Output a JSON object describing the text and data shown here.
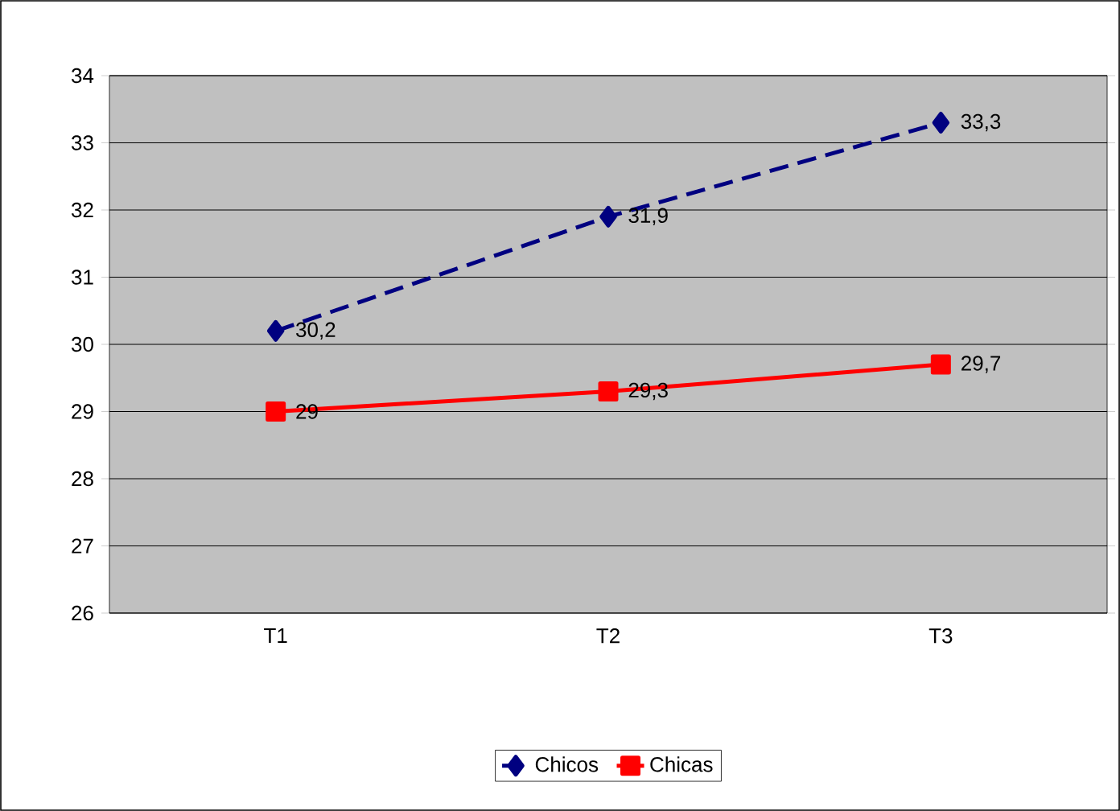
{
  "chart_data": {
    "type": "line",
    "categories": [
      "T1",
      "T2",
      "T3"
    ],
    "series": [
      {
        "name": "Chicos",
        "color": "#000080",
        "values": [
          30.2,
          31.9,
          33.3
        ],
        "value_labels": [
          "30,2",
          "31,9",
          "33,3"
        ],
        "marker": "diamond",
        "line_style": "dashed"
      },
      {
        "name": "Chicas",
        "color": "#ff0000",
        "values": [
          29,
          29.3,
          29.7
        ],
        "value_labels": [
          "29",
          "29,3",
          "29,7"
        ],
        "marker": "square",
        "line_style": "solid"
      }
    ],
    "ylim": [
      26,
      34
    ],
    "yticks": [
      26,
      27,
      28,
      29,
      30,
      31,
      32,
      33,
      34
    ],
    "grid": "y",
    "legend": "bottom"
  }
}
